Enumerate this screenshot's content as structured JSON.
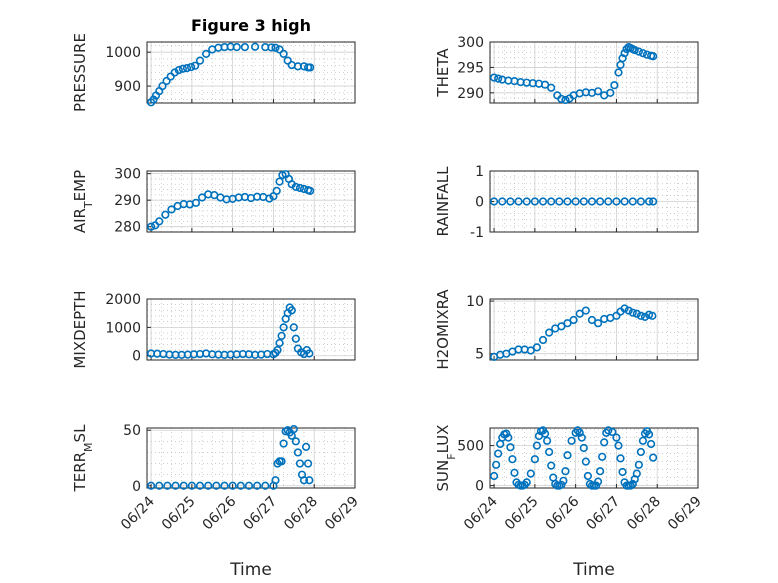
{
  "figure_title": "Figure 3 high",
  "x_label": "Time",
  "x_ticks": [
    "06/24",
    "06/25",
    "06/26",
    "06/27",
    "06/28",
    "06/29"
  ],
  "colors": {
    "marker": "#0072BD",
    "axis": "#262626",
    "grid": "#b0b0b0"
  },
  "chart_data": [
    {
      "type": "scatter",
      "panel": "pressure",
      "ylabel": "PRESSURE",
      "ylabel_parts": [
        {
          "t": "PRESSURE"
        }
      ],
      "ylim": [
        850,
        1030
      ],
      "yticks": [
        900,
        1000
      ],
      "x": [
        0.0,
        0.06,
        0.12,
        0.2,
        0.28,
        0.38,
        0.48,
        0.58,
        0.68,
        0.78,
        0.88,
        0.98,
        1.08,
        1.2,
        1.35,
        1.5,
        1.65,
        1.8,
        1.95,
        2.1,
        2.3,
        2.55,
        2.8,
        2.95,
        3.05,
        3.15,
        3.25,
        3.35,
        3.45,
        3.6,
        3.75,
        3.85,
        3.9
      ],
      "y": [
        852,
        860,
        872,
        885,
        900,
        915,
        928,
        940,
        947,
        951,
        953,
        956,
        960,
        975,
        995,
        1008,
        1013,
        1015,
        1016,
        1015,
        1015,
        1016,
        1015,
        1014,
        1013,
        1008,
        995,
        975,
        962,
        958,
        958,
        955,
        955
      ]
    },
    {
      "type": "scatter",
      "panel": "theta",
      "ylabel": "THETA",
      "ylabel_parts": [
        {
          "t": "THETA"
        }
      ],
      "ylim": [
        288,
        300
      ],
      "yticks": [
        290,
        295,
        300
      ],
      "x": [
        0.0,
        0.1,
        0.2,
        0.35,
        0.5,
        0.65,
        0.8,
        0.95,
        1.1,
        1.25,
        1.4,
        1.55,
        1.65,
        1.75,
        1.85,
        1.95,
        2.1,
        2.25,
        2.4,
        2.55,
        2.7,
        2.85,
        2.95,
        3.05,
        3.1,
        3.15,
        3.2,
        3.25,
        3.3,
        3.35,
        3.4,
        3.45,
        3.55,
        3.65,
        3.75,
        3.85,
        3.9
      ],
      "y": [
        293,
        292.8,
        292.6,
        292.4,
        292.3,
        292.1,
        292.0,
        291.9,
        291.8,
        291.6,
        291.0,
        289.5,
        288.8,
        288.6,
        288.9,
        289.5,
        289.9,
        290.1,
        290.0,
        290.3,
        289.5,
        290.0,
        291.5,
        294.0,
        295.5,
        296.8,
        297.8,
        298.6,
        299.0,
        298.8,
        298.6,
        298.4,
        298.1,
        297.8,
        297.5,
        297.3,
        297.2
      ]
    },
    {
      "type": "scatter",
      "panel": "air_temp",
      "ylabel": "AIR_TEMP",
      "ylabel_parts": [
        {
          "t": "AIR"
        },
        {
          "t": "T",
          "sub": true
        },
        {
          "t": "EMP"
        }
      ],
      "ylim": [
        278,
        301
      ],
      "yticks": [
        280,
        290,
        300
      ],
      "x": [
        0.0,
        0.1,
        0.2,
        0.35,
        0.5,
        0.65,
        0.8,
        0.95,
        1.1,
        1.25,
        1.4,
        1.55,
        1.7,
        1.85,
        2.0,
        2.15,
        2.3,
        2.45,
        2.6,
        2.75,
        2.9,
        3.0,
        3.08,
        3.15,
        3.22,
        3.3,
        3.38,
        3.45,
        3.55,
        3.65,
        3.75,
        3.85,
        3.9
      ],
      "y": [
        280,
        280.5,
        282,
        284.5,
        286.5,
        287.8,
        288.5,
        288.4,
        289.0,
        291.0,
        292.2,
        291.9,
        291.0,
        290.3,
        290.5,
        291.0,
        291.2,
        290.8,
        291.3,
        291.2,
        290.6,
        291.5,
        293.5,
        297.0,
        299.5,
        299.8,
        298.0,
        296.0,
        295.0,
        294.6,
        294.2,
        293.8,
        293.5
      ]
    },
    {
      "type": "scatter",
      "panel": "rainfall",
      "ylabel": "RAINFALL",
      "ylabel_parts": [
        {
          "t": "RAINFALL"
        }
      ],
      "ylim": [
        -1,
        1
      ],
      "yticks": [
        -1,
        0,
        1
      ],
      "x": [
        0.0,
        0.2,
        0.4,
        0.6,
        0.8,
        1.0,
        1.2,
        1.4,
        1.6,
        1.8,
        2.0,
        2.2,
        2.4,
        2.6,
        2.8,
        3.0,
        3.2,
        3.4,
        3.6,
        3.8,
        3.9
      ],
      "y": [
        0,
        0,
        0,
        0,
        0,
        0,
        0,
        0,
        0,
        0,
        0,
        0,
        0,
        0,
        0,
        0,
        0,
        0,
        0,
        0,
        0
      ]
    },
    {
      "type": "scatter",
      "panel": "mixdepth",
      "ylabel": "MIXDEPTH",
      "ylabel_parts": [
        {
          "t": "MIXDEPTH"
        }
      ],
      "ylim": [
        -150,
        2000
      ],
      "yticks": [
        0,
        1000,
        2000
      ],
      "x": [
        0.0,
        0.15,
        0.3,
        0.45,
        0.6,
        0.75,
        0.9,
        1.05,
        1.2,
        1.35,
        1.5,
        1.65,
        1.8,
        1.95,
        2.1,
        2.25,
        2.4,
        2.55,
        2.7,
        2.85,
        3.0,
        3.05,
        3.1,
        3.15,
        3.2,
        3.25,
        3.3,
        3.35,
        3.4,
        3.45,
        3.5,
        3.55,
        3.6,
        3.68,
        3.75,
        3.82,
        3.88
      ],
      "y": [
        80,
        70,
        60,
        40,
        30,
        30,
        40,
        50,
        60,
        80,
        50,
        40,
        30,
        40,
        50,
        60,
        50,
        30,
        40,
        60,
        50,
        100,
        200,
        450,
        700,
        1000,
        1300,
        1500,
        1700,
        1600,
        1000,
        600,
        250,
        120,
        60,
        200,
        80
      ]
    },
    {
      "type": "scatter",
      "panel": "h2omixra",
      "ylabel": "H2OMIXRA",
      "ylabel_parts": [
        {
          "t": "H2OMIXRA"
        }
      ],
      "ylim": [
        4.4,
        10.2
      ],
      "yticks": [
        5,
        10
      ],
      "x": [
        0.0,
        0.15,
        0.3,
        0.45,
        0.6,
        0.75,
        0.9,
        1.05,
        1.2,
        1.35,
        1.5,
        1.65,
        1.8,
        1.95,
        2.1,
        2.25,
        2.4,
        2.55,
        2.7,
        2.85,
        3.0,
        3.1,
        3.2,
        3.3,
        3.4,
        3.5,
        3.6,
        3.7,
        3.8,
        3.88
      ],
      "y": [
        4.7,
        4.9,
        5.0,
        5.2,
        5.4,
        5.4,
        5.3,
        5.6,
        6.3,
        7.0,
        7.4,
        7.6,
        7.9,
        8.2,
        8.8,
        9.1,
        8.2,
        7.9,
        8.3,
        8.4,
        8.6,
        9.0,
        9.3,
        9.1,
        8.9,
        8.8,
        8.6,
        8.5,
        8.7,
        8.6
      ]
    },
    {
      "type": "scatter",
      "panel": "terr_msl",
      "ylabel": "TERR_MSL",
      "ylabel_parts": [
        {
          "t": "TERR"
        },
        {
          "t": "M",
          "sub": true
        },
        {
          "t": "SL"
        }
      ],
      "ylim": [
        -2,
        52
      ],
      "yticks": [
        0,
        50
      ],
      "x": [
        0.0,
        0.2,
        0.4,
        0.6,
        0.8,
        1.0,
        1.2,
        1.4,
        1.6,
        1.8,
        2.0,
        2.2,
        2.4,
        2.6,
        2.8,
        3.0,
        3.05,
        3.1,
        3.15,
        3.2,
        3.25,
        3.3,
        3.35,
        3.4,
        3.45,
        3.5,
        3.55,
        3.6,
        3.65,
        3.7,
        3.75,
        3.8,
        3.85,
        3.88
      ],
      "y": [
        0,
        0,
        0,
        0,
        0,
        0,
        0,
        0,
        0,
        0,
        0,
        0,
        0,
        0,
        0,
        0,
        5,
        20,
        22,
        22,
        38,
        49,
        50,
        48,
        45,
        51,
        40,
        30,
        20,
        10,
        5,
        35,
        20,
        5
      ]
    },
    {
      "type": "scatter",
      "panel": "sun_flux",
      "ylabel": "SUN_FLUX",
      "ylabel_parts": [
        {
          "t": "SUN"
        },
        {
          "t": "F",
          "sub": true
        },
        {
          "t": "LUX"
        }
      ],
      "ylim": [
        -30,
        720
      ],
      "yticks": [
        0,
        500
      ],
      "x": [
        0.0,
        0.05,
        0.1,
        0.15,
        0.2,
        0.25,
        0.3,
        0.35,
        0.4,
        0.45,
        0.5,
        0.55,
        0.6,
        0.65,
        0.7,
        0.75,
        0.8,
        0.9,
        1.0,
        1.05,
        1.1,
        1.15,
        1.2,
        1.25,
        1.3,
        1.35,
        1.4,
        1.45,
        1.5,
        1.55,
        1.6,
        1.65,
        1.7,
        1.75,
        1.8,
        1.9,
        2.0,
        2.05,
        2.1,
        2.15,
        2.2,
        2.25,
        2.3,
        2.35,
        2.4,
        2.45,
        2.5,
        2.55,
        2.6,
        2.65,
        2.7,
        2.75,
        2.8,
        2.9,
        3.0,
        3.05,
        3.1,
        3.15,
        3.2,
        3.25,
        3.3,
        3.35,
        3.4,
        3.45,
        3.5,
        3.55,
        3.6,
        3.65,
        3.7,
        3.75,
        3.8,
        3.85,
        3.9
      ],
      "y": [
        120,
        260,
        400,
        520,
        600,
        640,
        650,
        600,
        480,
        330,
        160,
        40,
        10,
        0,
        0,
        10,
        40,
        150,
        330,
        500,
        620,
        680,
        690,
        650,
        560,
        420,
        250,
        100,
        20,
        0,
        0,
        10,
        60,
        180,
        380,
        560,
        660,
        690,
        660,
        600,
        470,
        300,
        120,
        20,
        0,
        0,
        0,
        50,
        180,
        360,
        540,
        660,
        690,
        670,
        600,
        500,
        340,
        170,
        40,
        0,
        0,
        0,
        20,
        80,
        150,
        260,
        420,
        560,
        650,
        680,
        640,
        520,
        350
      ]
    }
  ]
}
